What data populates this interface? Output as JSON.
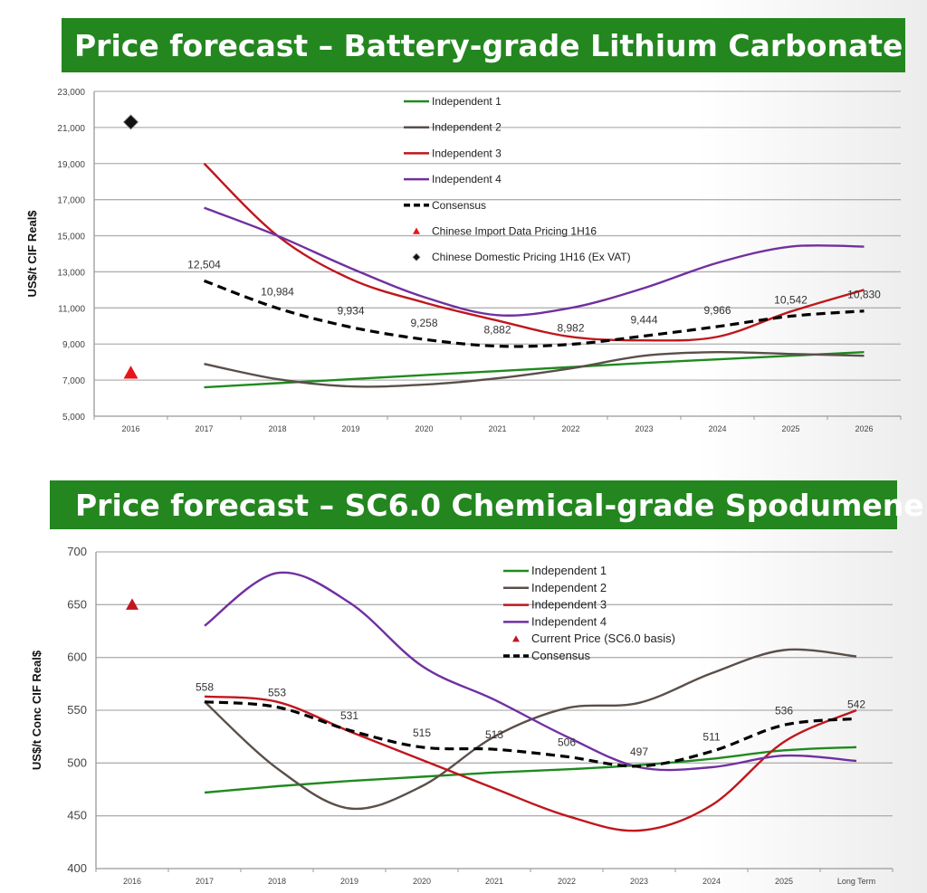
{
  "chart_data": [
    {
      "type": "line",
      "title": "Price forecast – Battery-grade Lithium Carbonate",
      "ylabel": "US$/t CIF  Real$",
      "xlabel": "",
      "ylim": [
        5000,
        23000
      ],
      "yticks": [
        "5,000",
        "7,000",
        "9,000",
        "11,000",
        "13,000",
        "15,000",
        "17,000",
        "19,000",
        "21,000",
        "23,000"
      ],
      "categories": [
        "2016",
        "2017",
        "2018",
        "2019",
        "2020",
        "2021",
        "2022",
        "2023",
        "2024",
        "2025",
        "2026"
      ],
      "grid": true,
      "legend_position": "top-center",
      "series": [
        {
          "name": "Independent 1",
          "color": "#1f8a1f",
          "values": [
            null,
            6600,
            6830,
            7050,
            7280,
            7500,
            7720,
            7950,
            8150,
            8350,
            8550
          ]
        },
        {
          "name": "Independent 2",
          "color": "#5a4f4a",
          "values": [
            null,
            7900,
            7050,
            6650,
            6750,
            7100,
            7650,
            8350,
            8550,
            8450,
            8350
          ]
        },
        {
          "name": "Independent 3",
          "color": "#c0161c",
          "values": [
            null,
            19000,
            15000,
            12600,
            11300,
            10300,
            9400,
            9200,
            9400,
            10800,
            12000
          ]
        },
        {
          "name": "Independent 4",
          "color": "#7030a0",
          "values": [
            null,
            16550,
            15000,
            13200,
            11600,
            10600,
            11000,
            12100,
            13500,
            14400,
            14400
          ]
        },
        {
          "name": "Consensus",
          "color": "#000000",
          "dashed": true,
          "values": [
            null,
            12504,
            10984,
            9934,
            9258,
            8882,
            8982,
            9444,
            9966,
            10542,
            10830
          ],
          "labels": [
            "",
            "12,504",
            "10,984",
            "9,934",
            "9,258",
            "8,882",
            "8,982",
            "9,444",
            "9,966",
            "10,542",
            "10,830"
          ]
        }
      ],
      "markers": [
        {
          "name": "Chinese Import Data Pricing 1H16",
          "shape": "triangle",
          "color": "#e8141b",
          "x": "2016",
          "y": 7400
        },
        {
          "name": "Chinese Domestic Pricing 1H16 (Ex VAT)",
          "shape": "diamond",
          "color": "#111111",
          "x": "2016",
          "y": 21300
        }
      ],
      "legend_order": [
        "Independent 1",
        "Independent 2",
        "Independent 3",
        "Independent 4",
        "Consensus",
        "Chinese Import Data Pricing 1H16",
        "Chinese Domestic Pricing 1H16 (Ex VAT)"
      ]
    },
    {
      "type": "line",
      "title": "Price forecast – SC6.0 Chemical-grade Spodumene",
      "ylabel": "US$/t Conc CIF  Real$",
      "xlabel": "",
      "ylim": [
        400,
        700
      ],
      "yticks": [
        "400",
        "450",
        "500",
        "550",
        "600",
        "650",
        "700"
      ],
      "categories": [
        "2016",
        "2017",
        "2018",
        "2019",
        "2020",
        "2021",
        "2022",
        "2023",
        "2024",
        "2025",
        "Long Term"
      ],
      "grid": true,
      "legend_position": "top-center",
      "series": [
        {
          "name": "Independent 1",
          "color": "#1f8a1f",
          "values": [
            null,
            472,
            478,
            483,
            487,
            491,
            494,
            498,
            504,
            512,
            515
          ]
        },
        {
          "name": "Independent 2",
          "color": "#5a4f4a",
          "values": [
            null,
            558,
            495,
            457,
            478,
            525,
            552,
            557,
            585,
            607,
            601
          ]
        },
        {
          "name": "Independent 3",
          "color": "#c0161c",
          "values": [
            null,
            563,
            558,
            530,
            503,
            476,
            450,
            436,
            460,
            520,
            550
          ]
        },
        {
          "name": "Independent 4",
          "color": "#7030a0",
          "values": [
            null,
            630,
            680,
            652,
            592,
            560,
            525,
            496,
            496,
            507,
            502
          ]
        },
        {
          "name": "Consensus",
          "color": "#000000",
          "dashed": true,
          "values": [
            null,
            558,
            553,
            531,
            515,
            513,
            506,
            497,
            511,
            536,
            542
          ],
          "labels": [
            "",
            "558",
            "553",
            "531",
            "515",
            "513",
            "506",
            "497",
            "511",
            "536",
            "542"
          ]
        }
      ],
      "markers": [
        {
          "name": "Current Price (SC6.0 basis)",
          "shape": "triangle",
          "color": "#c0161c",
          "x": "2016",
          "y": 650
        }
      ],
      "legend_order": [
        "Independent 1",
        "Independent 2",
        "Independent 3",
        "Independent 4",
        "Current Price (SC6.0 basis)",
        "Consensus"
      ]
    }
  ]
}
